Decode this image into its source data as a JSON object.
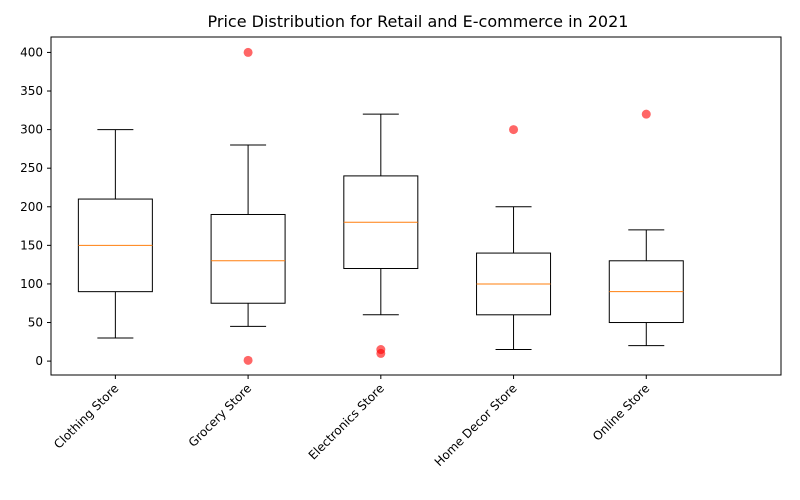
{
  "chart_data": {
    "type": "box",
    "title": "Price Distribution for Retail and E-commerce in 2021",
    "xlabel": "",
    "ylabel": "",
    "ylim": [
      -18,
      420
    ],
    "yticks": [
      0,
      50,
      100,
      150,
      200,
      250,
      300,
      350,
      400
    ],
    "grid": false,
    "categories": [
      "Clothing Store",
      "Grocery Store",
      "Electronics Store",
      "Home Decor Store",
      "Online Store"
    ],
    "boxes": [
      {
        "category": "Clothing Store",
        "whisker_low": 30,
        "q1": 90,
        "median": 150,
        "q3": 210,
        "whisker_high": 300,
        "outliers": []
      },
      {
        "category": "Grocery Store",
        "whisker_low": 45,
        "q1": 75,
        "median": 130,
        "q3": 190,
        "whisker_high": 280,
        "outliers": [
          400,
          1
        ]
      },
      {
        "category": "Electronics Store",
        "whisker_low": 60,
        "q1": 120,
        "median": 180,
        "q3": 240,
        "whisker_high": 320,
        "outliers": [
          10,
          15
        ]
      },
      {
        "category": "Home Decor Store",
        "whisker_low": 15,
        "q1": 60,
        "median": 100,
        "q3": 140,
        "whisker_high": 200,
        "outliers": [
          300
        ]
      },
      {
        "category": "Online Store",
        "whisker_low": 20,
        "q1": 50,
        "median": 90,
        "q3": 130,
        "whisker_high": 170,
        "outliers": [
          320
        ]
      }
    ],
    "colors": {
      "box": "#000000",
      "median": "#ff7f0e",
      "outlier": "#ff0000"
    }
  }
}
